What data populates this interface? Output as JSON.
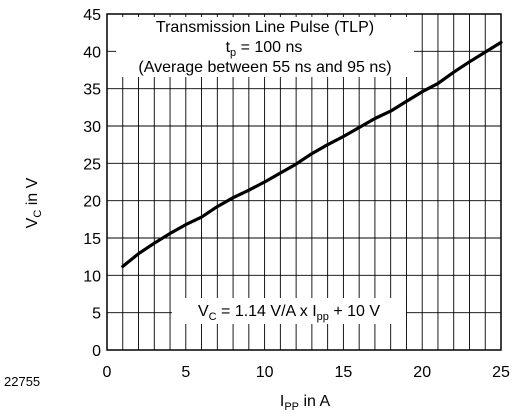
{
  "figure_code": "22755",
  "chart_data": {
    "type": "line",
    "title_box": {
      "line1": "Transmission Line Pulse (TLP)",
      "line2_main": "t",
      "line2_sub": "p",
      "line2_rest": " = 100 ns",
      "line3": "(Average between 55 ns and 95 ns)"
    },
    "equation": {
      "p1": "V",
      "s1": "C",
      "p2": " = 1.14 V/A x I",
      "s2": "pp",
      "p3": " + 10 V"
    },
    "xlabel": {
      "main": "I",
      "sub": "PP",
      "rest": " in A"
    },
    "ylabel": {
      "main": "V",
      "sub": "C",
      "rest": " in V"
    },
    "xlim": [
      0,
      25
    ],
    "ylim": [
      0,
      45
    ],
    "x_ticks": [
      0,
      5,
      10,
      15,
      20,
      25
    ],
    "y_ticks": [
      0,
      5,
      10,
      15,
      20,
      25,
      30,
      35,
      40,
      45
    ],
    "x_minor_step": 1,
    "y_minor_step": 5,
    "grid": true,
    "series": [
      {
        "color": "#000000",
        "x": [
          1,
          2,
          3,
          4,
          5,
          6,
          7,
          8,
          9,
          10,
          11,
          12,
          13,
          14,
          15,
          16,
          17,
          18,
          19,
          20,
          21,
          22,
          23,
          24,
          25
        ],
        "y": [
          11.2,
          12.9,
          14.3,
          15.6,
          16.8,
          17.8,
          19.2,
          20.4,
          21.4,
          22.5,
          23.7,
          24.9,
          26.3,
          27.5,
          28.6,
          29.8,
          31.0,
          32.0,
          33.3,
          34.6,
          35.7,
          37.2,
          38.6,
          39.9,
          41.2
        ]
      }
    ]
  }
}
